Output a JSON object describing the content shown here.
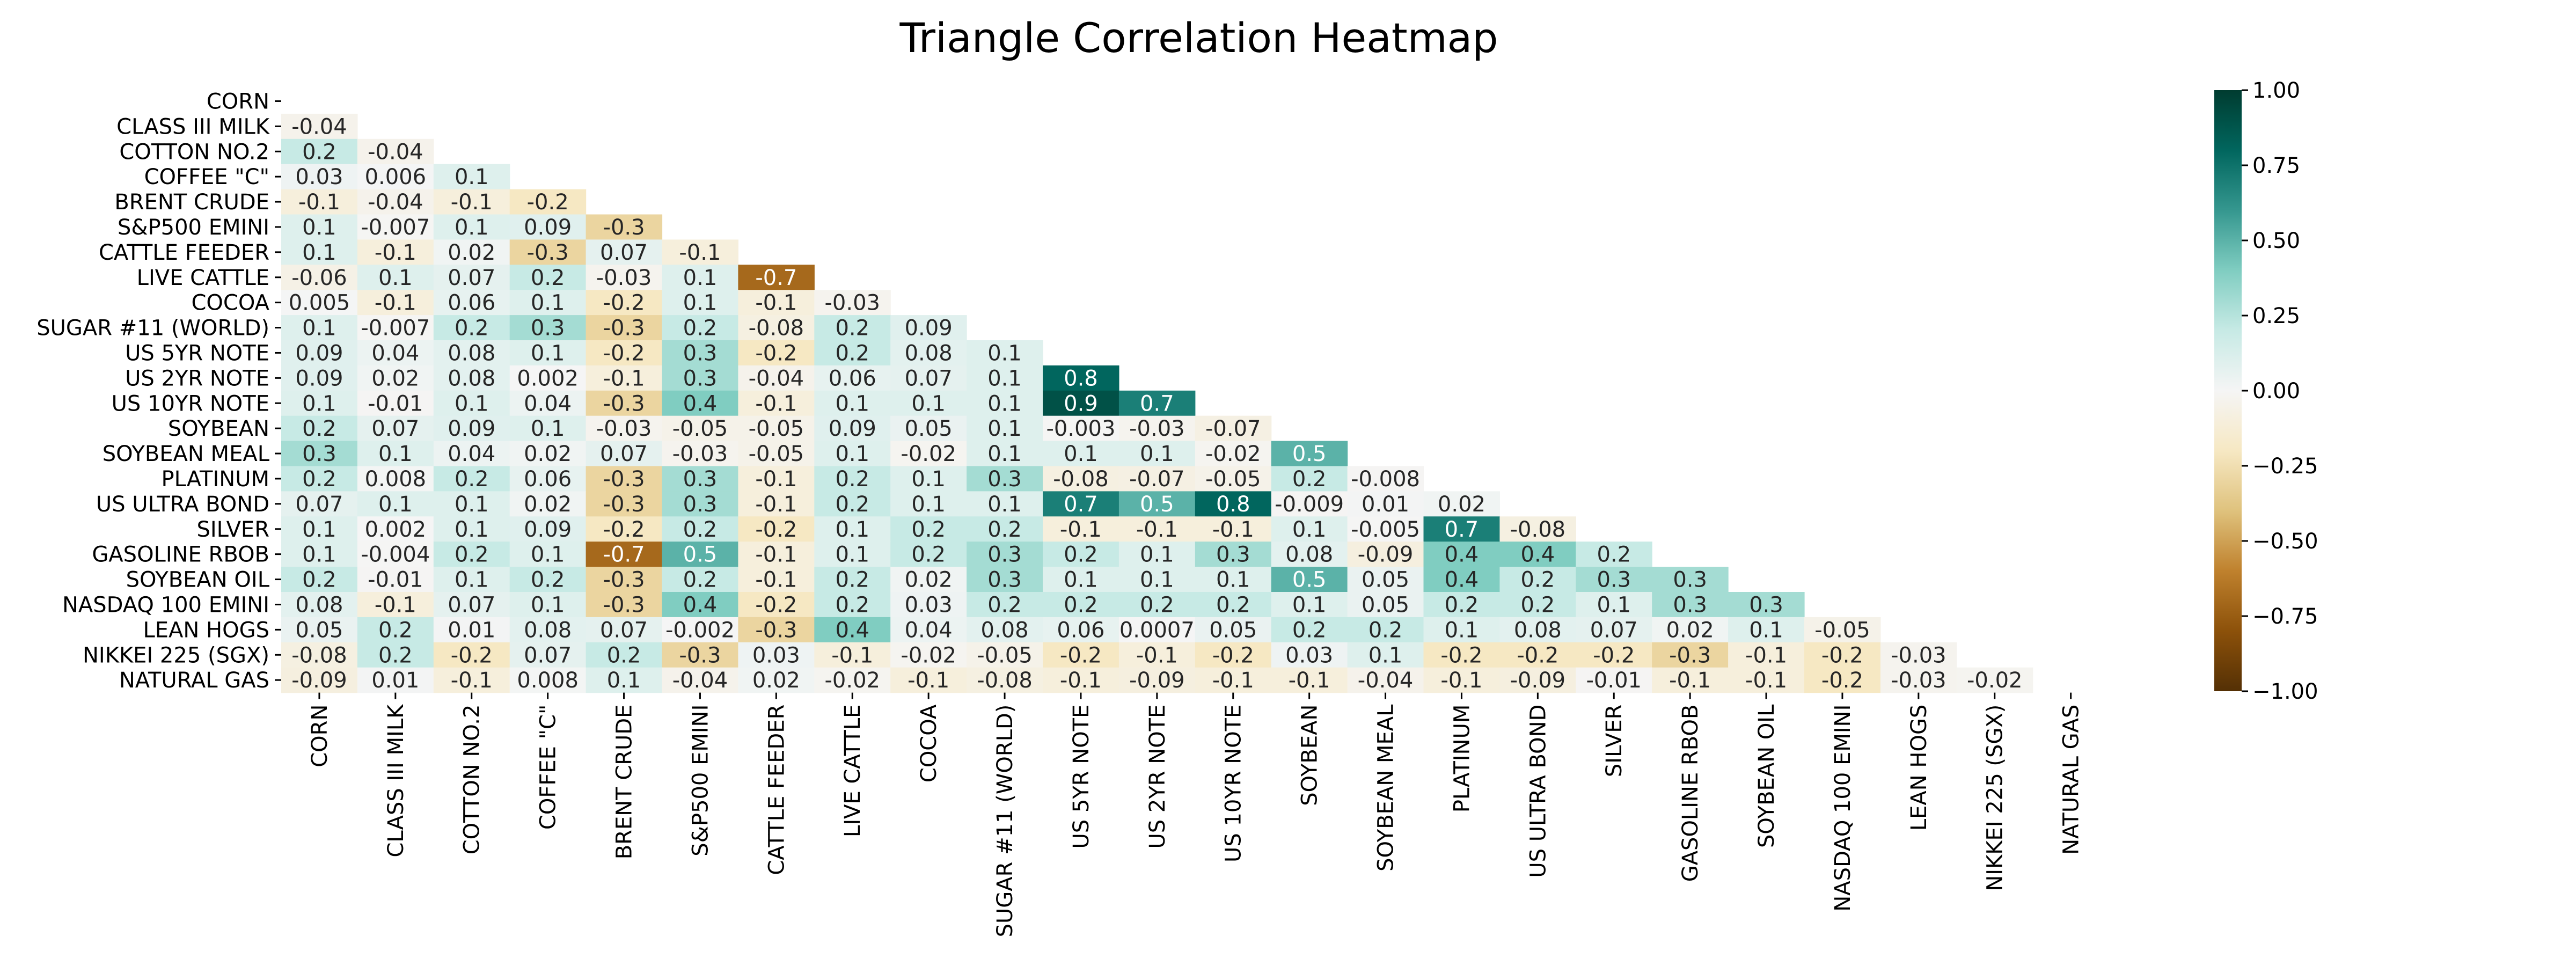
{
  "chart_data": {
    "type": "heatmap",
    "title": "Triangle Correlation Heatmap",
    "labels": [
      "CORN",
      "CLASS III MILK",
      "COTTON NO.2",
      "COFFEE \"C\"",
      "BRENT CRUDE",
      "S&P500 EMINI",
      "CATTLE FEEDER",
      "LIVE CATTLE",
      "COCOA",
      "SUGAR #11 (WORLD)",
      "US 5YR NOTE",
      "US 2YR NOTE",
      "US 10YR NOTE",
      "SOYBEAN",
      "SOYBEAN MEAL",
      "PLATINUM",
      "US ULTRA BOND",
      "SILVER",
      "GASOLINE RBOB",
      "SOYBEAN OIL",
      "NASDAQ 100 EMINI",
      "LEAN HOGS",
      "NIKKEI 225 (SGX)",
      "NATURAL GAS"
    ],
    "lower_triangle": [
      [],
      [
        "-0.04"
      ],
      [
        "0.2",
        "-0.04"
      ],
      [
        "0.03",
        "0.006",
        "0.1"
      ],
      [
        "-0.1",
        "-0.04",
        "-0.1",
        "-0.2"
      ],
      [
        "0.1",
        "-0.007",
        "0.1",
        "0.09",
        "-0.3"
      ],
      [
        "0.1",
        "-0.1",
        "0.02",
        "-0.3",
        "0.07",
        "-0.1"
      ],
      [
        "-0.06",
        "0.1",
        "0.07",
        "0.2",
        "-0.03",
        "0.1",
        "-0.7"
      ],
      [
        "0.005",
        "-0.1",
        "0.06",
        "0.1",
        "-0.2",
        "0.1",
        "-0.1",
        "-0.03"
      ],
      [
        "0.1",
        "-0.007",
        "0.2",
        "0.3",
        "-0.3",
        "0.2",
        "-0.08",
        "0.2",
        "0.09"
      ],
      [
        "0.09",
        "0.04",
        "0.08",
        "0.1",
        "-0.2",
        "0.3",
        "-0.2",
        "0.2",
        "0.08",
        "0.1"
      ],
      [
        "0.09",
        "0.02",
        "0.08",
        "0.002",
        "-0.1",
        "0.3",
        "-0.04",
        "0.06",
        "0.07",
        "0.1",
        "0.8"
      ],
      [
        "0.1",
        "-0.01",
        "0.1",
        "0.04",
        "-0.3",
        "0.4",
        "-0.1",
        "0.1",
        "0.1",
        "0.1",
        "0.9",
        "0.7"
      ],
      [
        "0.2",
        "0.07",
        "0.09",
        "0.1",
        "-0.03",
        "-0.05",
        "-0.05",
        "0.09",
        "0.05",
        "0.1",
        "-0.003",
        "-0.03",
        "-0.07"
      ],
      [
        "0.3",
        "0.1",
        "0.04",
        "0.02",
        "0.07",
        "-0.03",
        "-0.05",
        "0.1",
        "-0.02",
        "0.1",
        "0.1",
        "0.1",
        "-0.02",
        "0.5"
      ],
      [
        "0.2",
        "0.008",
        "0.2",
        "0.06",
        "-0.3",
        "0.3",
        "-0.1",
        "0.2",
        "0.1",
        "0.3",
        "-0.08",
        "-0.07",
        "-0.05",
        "0.2",
        "-0.008"
      ],
      [
        "0.07",
        "0.1",
        "0.1",
        "0.02",
        "-0.3",
        "0.3",
        "-0.1",
        "0.2",
        "0.1",
        "0.1",
        "0.7",
        "0.5",
        "0.8",
        "-0.009",
        "0.01",
        "0.02"
      ],
      [
        "0.1",
        "0.002",
        "0.1",
        "0.09",
        "-0.2",
        "0.2",
        "-0.2",
        "0.1",
        "0.2",
        "0.2",
        "-0.1",
        "-0.1",
        "-0.1",
        "0.1",
        "-0.005",
        "0.7",
        "-0.08"
      ],
      [
        "0.1",
        "-0.004",
        "0.2",
        "0.1",
        "-0.7",
        "0.5",
        "-0.1",
        "0.1",
        "0.2",
        "0.3",
        "0.2",
        "0.1",
        "0.3",
        "0.08",
        "-0.09",
        "0.4",
        "0.4",
        "0.2"
      ],
      [
        "0.2",
        "-0.01",
        "0.1",
        "0.2",
        "-0.3",
        "0.2",
        "-0.1",
        "0.2",
        "0.02",
        "0.3",
        "0.1",
        "0.1",
        "0.1",
        "0.5",
        "0.05",
        "0.4",
        "0.2",
        "0.3",
        "0.3"
      ],
      [
        "0.08",
        "-0.1",
        "0.07",
        "0.1",
        "-0.3",
        "0.4",
        "-0.2",
        "0.2",
        "0.03",
        "0.2",
        "0.2",
        "0.2",
        "0.2",
        "0.1",
        "0.05",
        "0.2",
        "0.2",
        "0.1",
        "0.3",
        "0.3"
      ],
      [
        "0.05",
        "0.2",
        "0.01",
        "0.08",
        "0.07",
        "-0.002",
        "-0.3",
        "0.4",
        "0.04",
        "0.08",
        "0.06",
        "0.0007",
        "0.05",
        "0.2",
        "0.2",
        "0.1",
        "0.08",
        "0.07",
        "0.02",
        "0.1",
        "-0.05"
      ],
      [
        "-0.08",
        "0.2",
        "-0.2",
        "0.07",
        "0.2",
        "-0.3",
        "0.03",
        "-0.1",
        "-0.02",
        "-0.05",
        "-0.2",
        "-0.1",
        "-0.2",
        "0.03",
        "0.1",
        "-0.2",
        "-0.2",
        "-0.2",
        "-0.3",
        "-0.1",
        "-0.2",
        "-0.03"
      ],
      [
        "-0.09",
        "0.01",
        "-0.1",
        "0.008",
        "0.1",
        "-0.04",
        "0.02",
        "-0.02",
        "-0.1",
        "-0.08",
        "-0.1",
        "-0.09",
        "-0.1",
        "-0.1",
        "-0.04",
        "-0.1",
        "-0.09",
        "-0.01",
        "-0.1",
        "-0.1",
        "-0.2",
        "-0.03",
        "-0.02"
      ]
    ],
    "colorbar": {
      "vmin": -1.0,
      "vmax": 1.0,
      "ticks": [
        "1.00",
        "0.75",
        "0.50",
        "0.25",
        "0.00",
        "−0.25",
        "−0.50",
        "−0.75",
        "−1.00"
      ],
      "colormap": "BrBG",
      "colormap_stops": [
        "#543005",
        "#8c510a",
        "#bf812d",
        "#dfc27d",
        "#f6e8c3",
        "#f5f5f5",
        "#c7eae5",
        "#80cdc1",
        "#35978f",
        "#01665e",
        "#003c30"
      ]
    }
  }
}
